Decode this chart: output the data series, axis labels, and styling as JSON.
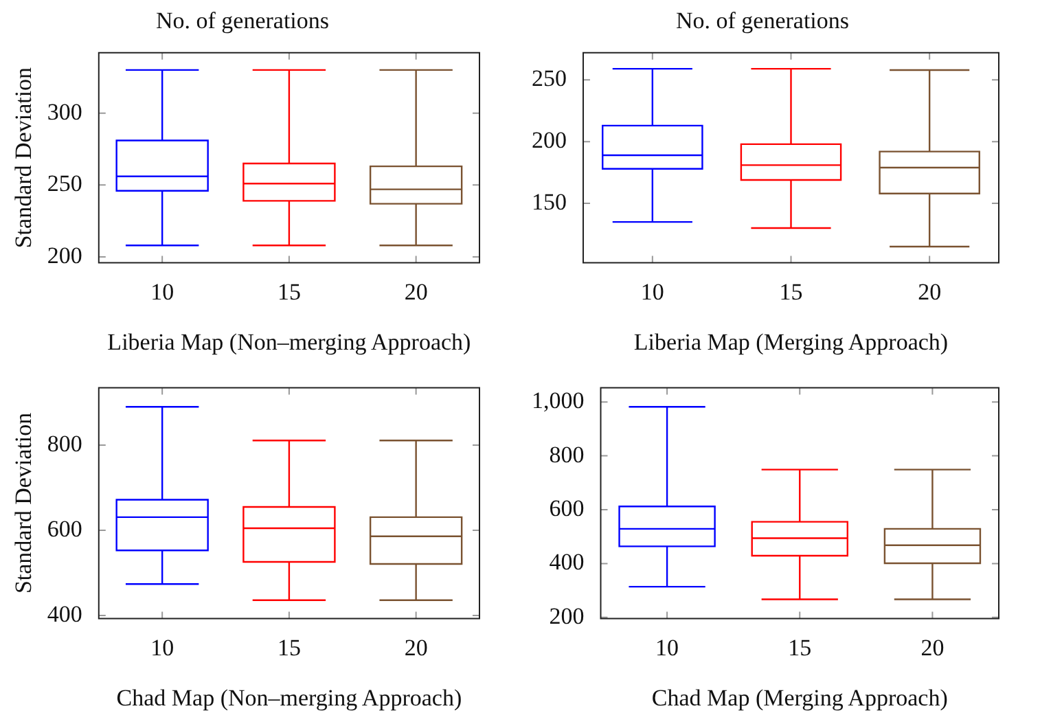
{
  "chart_data": [
    {
      "type": "box",
      "title": "No. of generations",
      "xlabel": "Liberia Map (Non–merging Approach)",
      "ylabel": "Standard Deviation",
      "categories": [
        "10",
        "15",
        "20"
      ],
      "colors": [
        "#0000ff",
        "#ff0000",
        "#7a5230"
      ],
      "ylim": [
        196,
        342
      ],
      "yticks": [
        200,
        250,
        300
      ],
      "boxes": [
        {
          "low": 208,
          "q1": 246,
          "median": 256,
          "q3": 281,
          "high": 330
        },
        {
          "low": 208,
          "q1": 239,
          "median": 251,
          "q3": 265,
          "high": 330
        },
        {
          "low": 208,
          "q1": 237,
          "median": 247,
          "q3": 263,
          "high": 330
        }
      ]
    },
    {
      "type": "box",
      "title": "No. of generations",
      "xlabel": "Liberia Map (Merging Approach)",
      "categories": [
        "10",
        "15",
        "20"
      ],
      "colors": [
        "#0000ff",
        "#ff0000",
        "#7a5230"
      ],
      "ylim": [
        102,
        272
      ],
      "yticks": [
        150,
        200,
        250
      ],
      "boxes": [
        {
          "low": 135,
          "q1": 178,
          "median": 189,
          "q3": 213,
          "high": 259
        },
        {
          "low": 130,
          "q1": 169,
          "median": 181,
          "q3": 198,
          "high": 259
        },
        {
          "low": 115,
          "q1": 158,
          "median": 179,
          "q3": 192,
          "high": 258
        }
      ]
    },
    {
      "type": "box",
      "xlabel": "Chad Map (Non–merging Approach)",
      "ylabel": "Standard Deviation",
      "categories": [
        "10",
        "15",
        "20"
      ],
      "colors": [
        "#0000ff",
        "#ff0000",
        "#7a5230"
      ],
      "ylim": [
        393,
        935
      ],
      "yticks": [
        400,
        600,
        800
      ],
      "boxes": [
        {
          "low": 474,
          "q1": 553,
          "median": 631,
          "q3": 672,
          "high": 890
        },
        {
          "low": 436,
          "q1": 526,
          "median": 605,
          "q3": 655,
          "high": 811
        },
        {
          "low": 436,
          "q1": 521,
          "median": 586,
          "q3": 631,
          "high": 811
        }
      ]
    },
    {
      "type": "box",
      "xlabel": "Chad Map (Merging Approach)",
      "categories": [
        "10",
        "15",
        "20"
      ],
      "colors": [
        "#0000ff",
        "#ff0000",
        "#7a5230"
      ],
      "ylim": [
        196,
        1053
      ],
      "yticks": [
        200,
        400,
        600,
        800,
        {
          "value": 1000,
          "label": "1,000"
        }
      ],
      "boxes": [
        {
          "low": 314,
          "q1": 464,
          "median": 529,
          "q3": 612,
          "high": 982
        },
        {
          "low": 267,
          "q1": 429,
          "median": 494,
          "q3": 555,
          "high": 749
        },
        {
          "low": 267,
          "q1": 401,
          "median": 468,
          "q3": 529,
          "high": 749
        }
      ]
    }
  ]
}
